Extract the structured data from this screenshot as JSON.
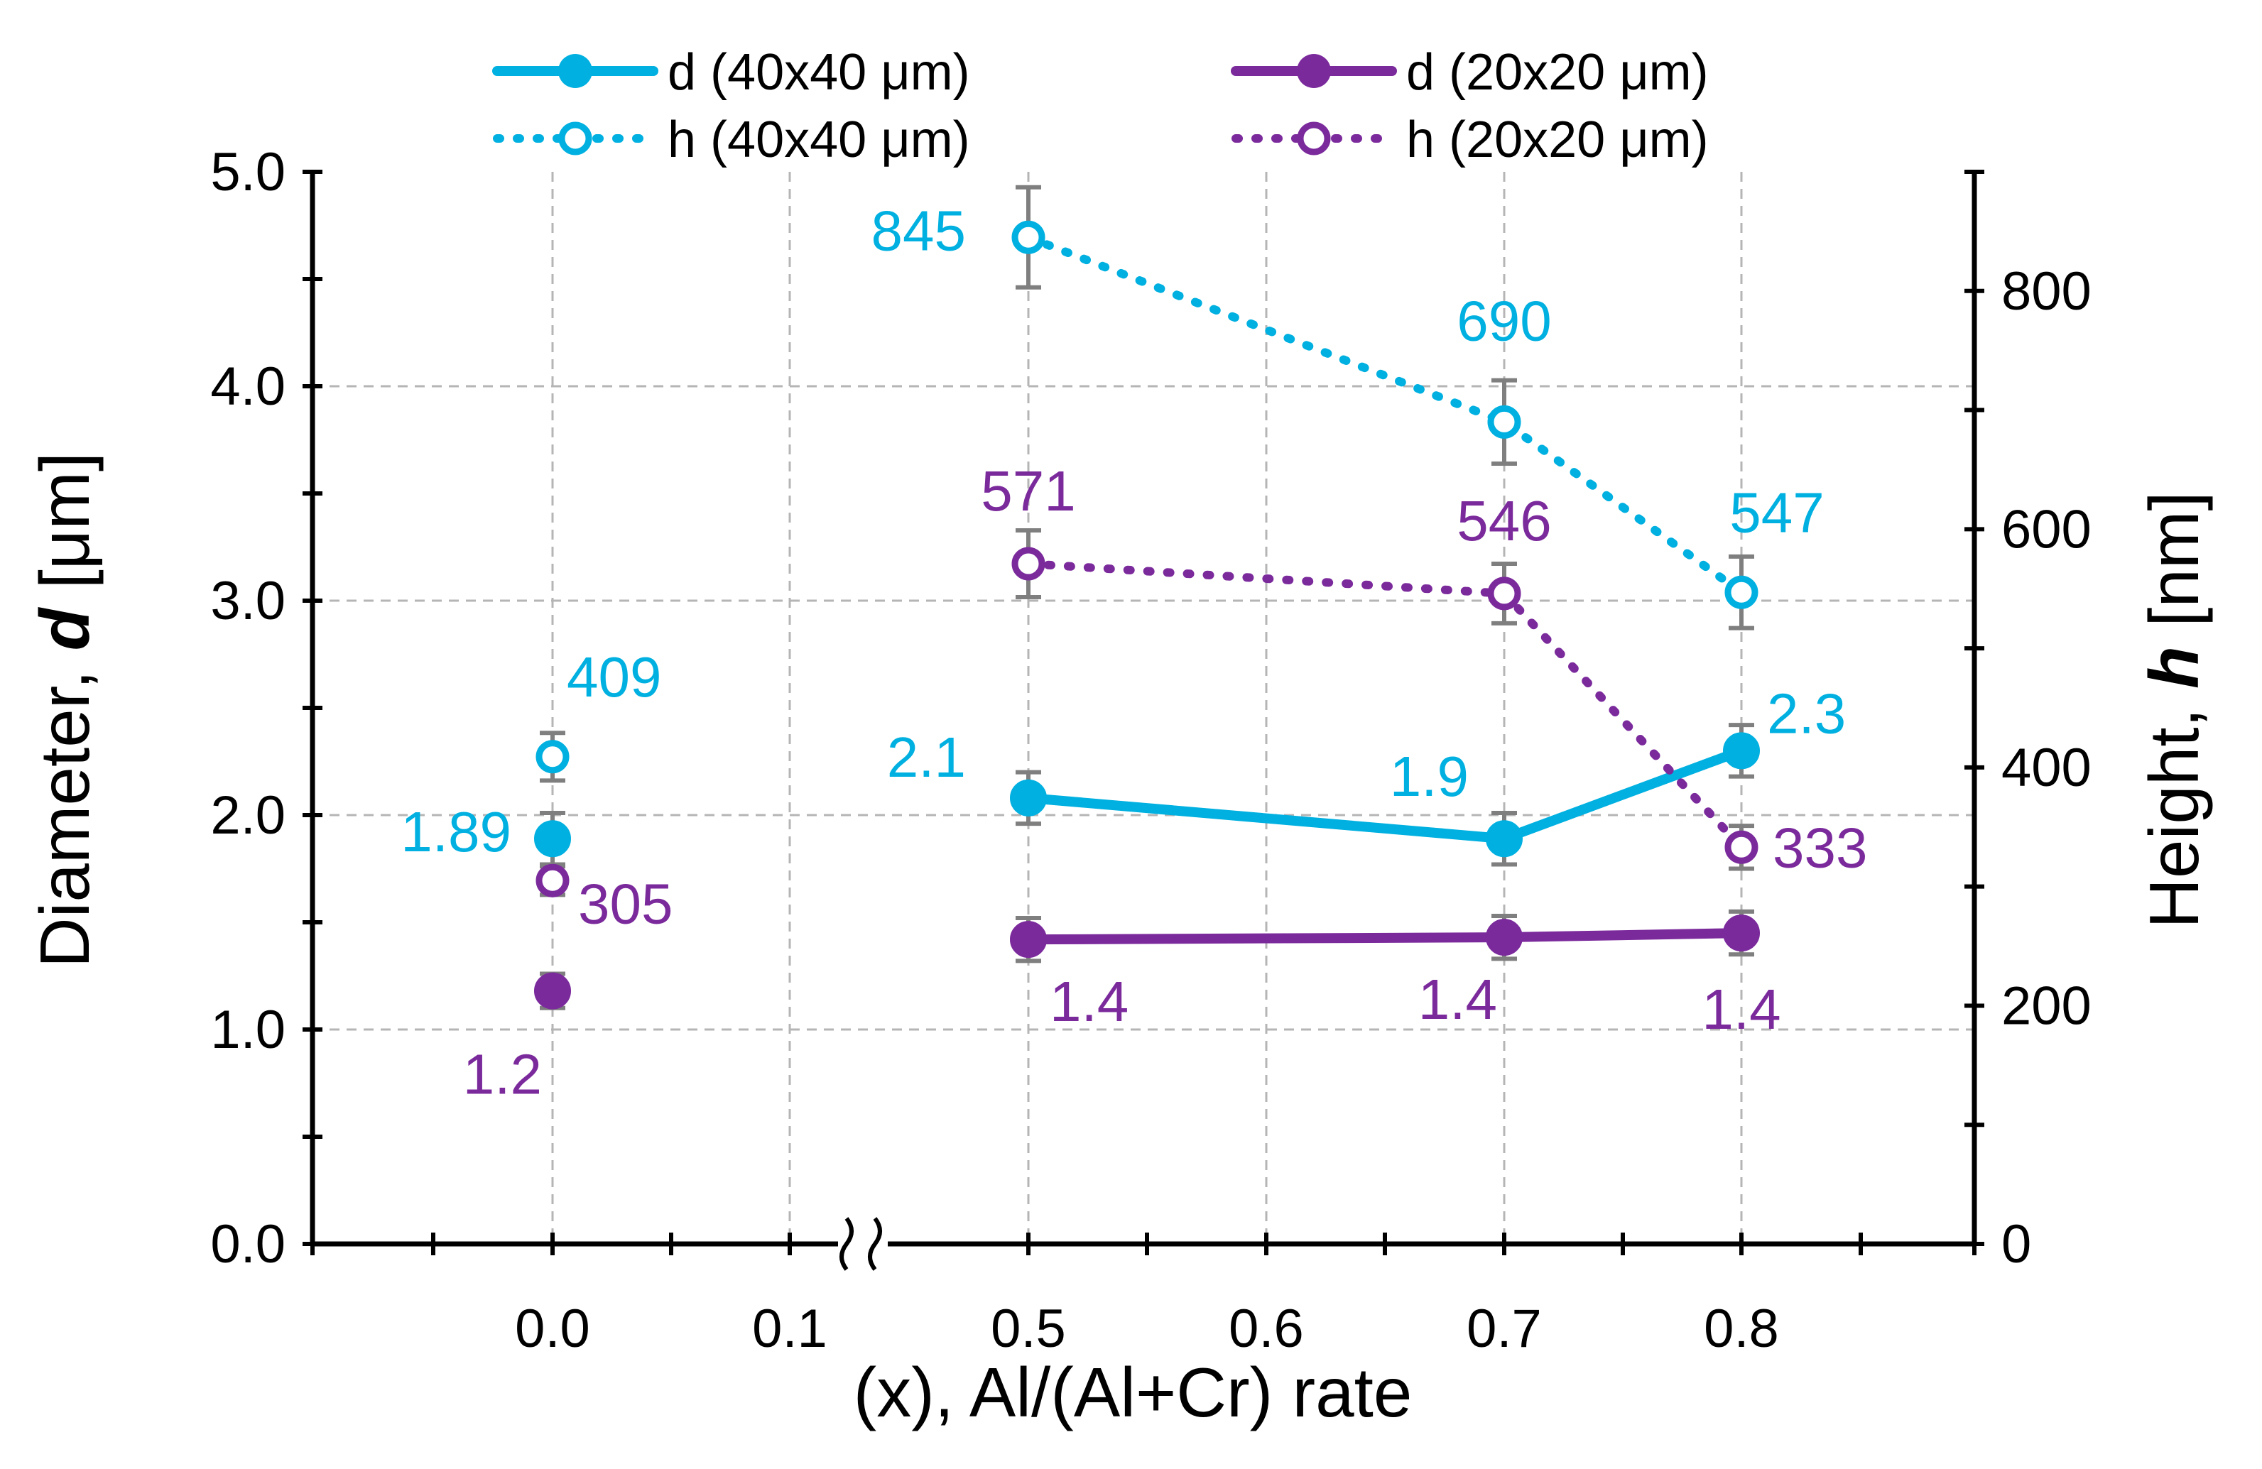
{
  "chart_data": {
    "type": "line",
    "xlabel": "(x), Al/(Al+Cr) rate",
    "ylabel_left": {
      "prefix": "Diameter, ",
      "var": "d",
      "unit": " [μm]"
    },
    "ylabel_right": {
      "prefix": "Height, ",
      "var": "h",
      "unit": " [nm]"
    },
    "x_ticks": [
      "0.0",
      "0.1",
      "0.5",
      "0.6",
      "0.7",
      "0.8"
    ],
    "x_axis_break": "between 0.1 and 0.5",
    "ylim_left": [
      0,
      5
    ],
    "ylim_right": [
      0,
      900
    ],
    "y_ticks_left": [
      "0.0",
      "1.0",
      "2.0",
      "3.0",
      "4.0",
      "5.0"
    ],
    "y_ticks_right": [
      "0",
      "200",
      "400",
      "600",
      "800"
    ],
    "grid": true,
    "legend_position": "top",
    "colors": {
      "cyan": "#00B0E0",
      "purple": "#7B2A9C",
      "errorbar": "#7f7f7f",
      "grid": "#b5b5b5",
      "axis": "#000000"
    },
    "series": [
      {
        "name": "d (40x40 μm)",
        "axis": "left",
        "style": "solid-filled",
        "color": "#00B0E0",
        "points": [
          {
            "x": "0.0",
            "y": 1.89,
            "err": 0.12,
            "label": "1.89",
            "connected": false
          },
          {
            "x": "0.5",
            "y": 2.08,
            "err": 0.12,
            "label": "2.1",
            "connected": true
          },
          {
            "x": "0.7",
            "y": 1.89,
            "err": 0.12,
            "label": "1.9",
            "connected": true
          },
          {
            "x": "0.8",
            "y": 2.3,
            "err": 0.12,
            "label": "2.3",
            "connected": true
          }
        ]
      },
      {
        "name": "h (40x40 μm)",
        "axis": "right",
        "style": "dotted-open",
        "color": "#00B0E0",
        "points": [
          {
            "x": "0.0",
            "y": 409,
            "err": 20,
            "label": "409",
            "connected": false
          },
          {
            "x": "0.5",
            "y": 845,
            "err": 42,
            "label": "845",
            "connected": true
          },
          {
            "x": "0.7",
            "y": 690,
            "err": 35,
            "label": "690",
            "connected": true
          },
          {
            "x": "0.8",
            "y": 547,
            "err": 30,
            "label": "547",
            "connected": true
          }
        ]
      },
      {
        "name": "d (20x20 μm)",
        "axis": "left",
        "style": "solid-filled",
        "color": "#7B2A9C",
        "points": [
          {
            "x": "0.0",
            "y": 1.18,
            "err": 0.08,
            "label": "1.2",
            "connected": false
          },
          {
            "x": "0.5",
            "y": 1.42,
            "err": 0.1,
            "label": "1.4",
            "connected": true
          },
          {
            "x": "0.7",
            "y": 1.43,
            "err": 0.1,
            "label": "1.4",
            "connected": true
          },
          {
            "x": "0.8",
            "y": 1.45,
            "err": 0.1,
            "label": "1.4",
            "connected": true
          }
        ]
      },
      {
        "name": "h (20x20 μm)",
        "axis": "right",
        "style": "dotted-open",
        "color": "#7B2A9C",
        "points": [
          {
            "x": "0.0",
            "y": 305,
            "err": 12,
            "label": "305",
            "connected": false
          },
          {
            "x": "0.5",
            "y": 571,
            "err": 28,
            "label": "571",
            "connected": true
          },
          {
            "x": "0.7",
            "y": 546,
            "err": 25,
            "label": "546",
            "connected": true
          },
          {
            "x": "0.8",
            "y": 333,
            "err": 18,
            "label": "333",
            "connected": true
          }
        ]
      }
    ]
  }
}
